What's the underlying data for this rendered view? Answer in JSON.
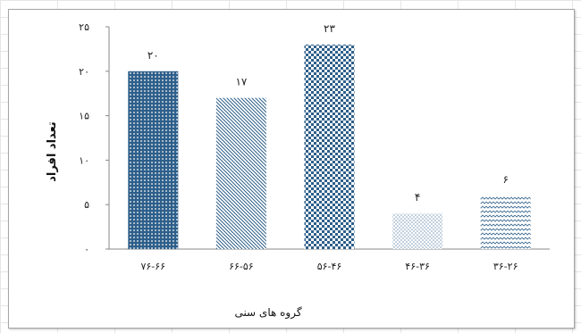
{
  "chart_data": {
    "type": "bar",
    "categories": [
      "۷۶-۶۶",
      "۶۶-۵۶",
      "۵۶-۴۶",
      "۴۶-۳۶",
      "۳۶-۲۶"
    ],
    "values": [
      20,
      17,
      23,
      4,
      6
    ],
    "data_labels": [
      "۲۰",
      "۱۷",
      "۲۳",
      "۴",
      "۶"
    ],
    "xlabel": "گروه های سنی",
    "ylabel": "تعداد افراد",
    "ylim": [
      0,
      25
    ],
    "yticks": [
      0,
      5,
      10,
      15,
      20,
      25
    ],
    "ytick_labels": [
      "۰",
      "۵",
      "۱۰",
      "۱۵",
      "۲۰",
      "۲۵"
    ],
    "grid": false,
    "legend": "none",
    "patterns": [
      "diamond-dots",
      "diagonal-lines",
      "checker",
      "fine-dots",
      "zigzag"
    ],
    "colors": {
      "bar": "#2e5f8a",
      "axis": "#888888"
    }
  }
}
